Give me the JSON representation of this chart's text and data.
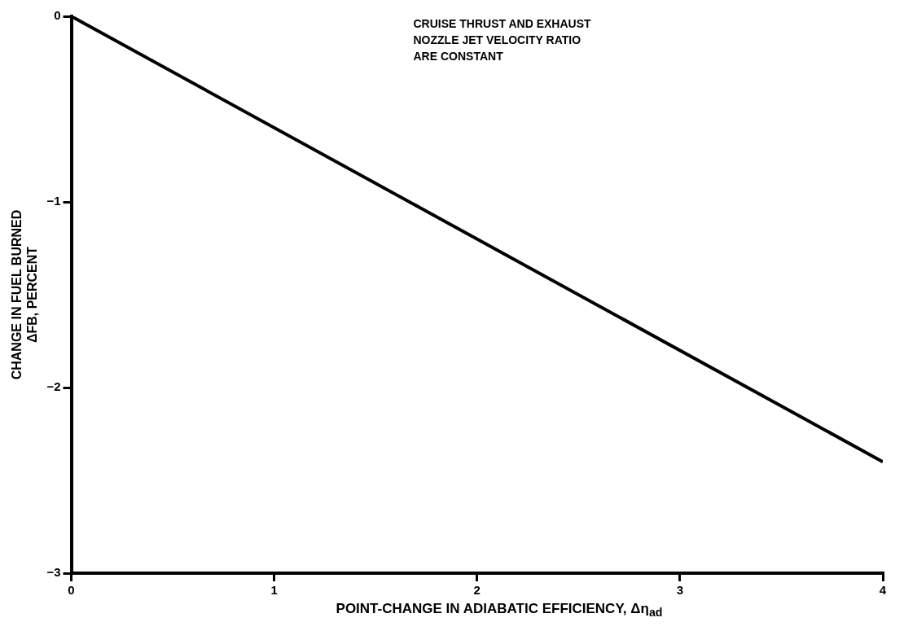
{
  "chart_data": {
    "type": "line",
    "xlabel": "POINT-CHANGE IN ADIABATIC EFFICIENCY, Δη$_{ad}$",
    "ylabel": "CHANGE IN FUEL BURNED\nΔFB, PERCENT",
    "x": [
      0,
      4
    ],
    "series": [
      {
        "color": "#000000",
        "values": [
          0,
          -2.4
        ]
      }
    ],
    "xlim": [
      0,
      4
    ],
    "ylim": [
      -3,
      0
    ],
    "xticks": [
      0,
      1,
      2,
      3,
      4
    ],
    "yticks": [
      -3,
      -2,
      -1,
      0
    ],
    "grid": false,
    "legend": false,
    "marker": "none",
    "line_style": "solid",
    "annotations": [
      "CRUISE THRUST AND EXHAUST\nNOZZLE JET VELOCITY RATIO\nARE CONSTANT"
    ]
  }
}
